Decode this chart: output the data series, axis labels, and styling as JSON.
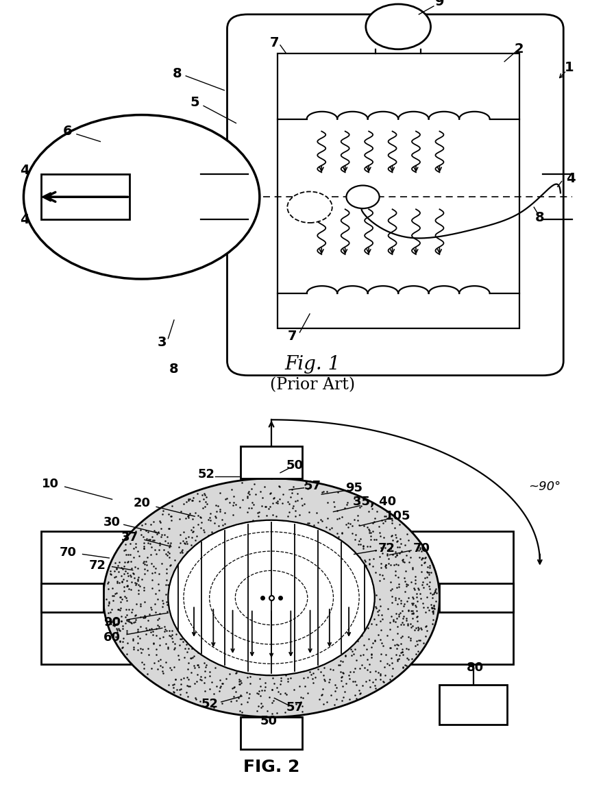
{
  "bg": "#ffffff",
  "lc": "#000000",
  "fig1_title": "Fig. 1",
  "fig1_subtitle": "(Prior Art)",
  "fig2_title": "FIG. 2",
  "figsize": [
    8.61,
    11.51
  ],
  "dpi": 100
}
